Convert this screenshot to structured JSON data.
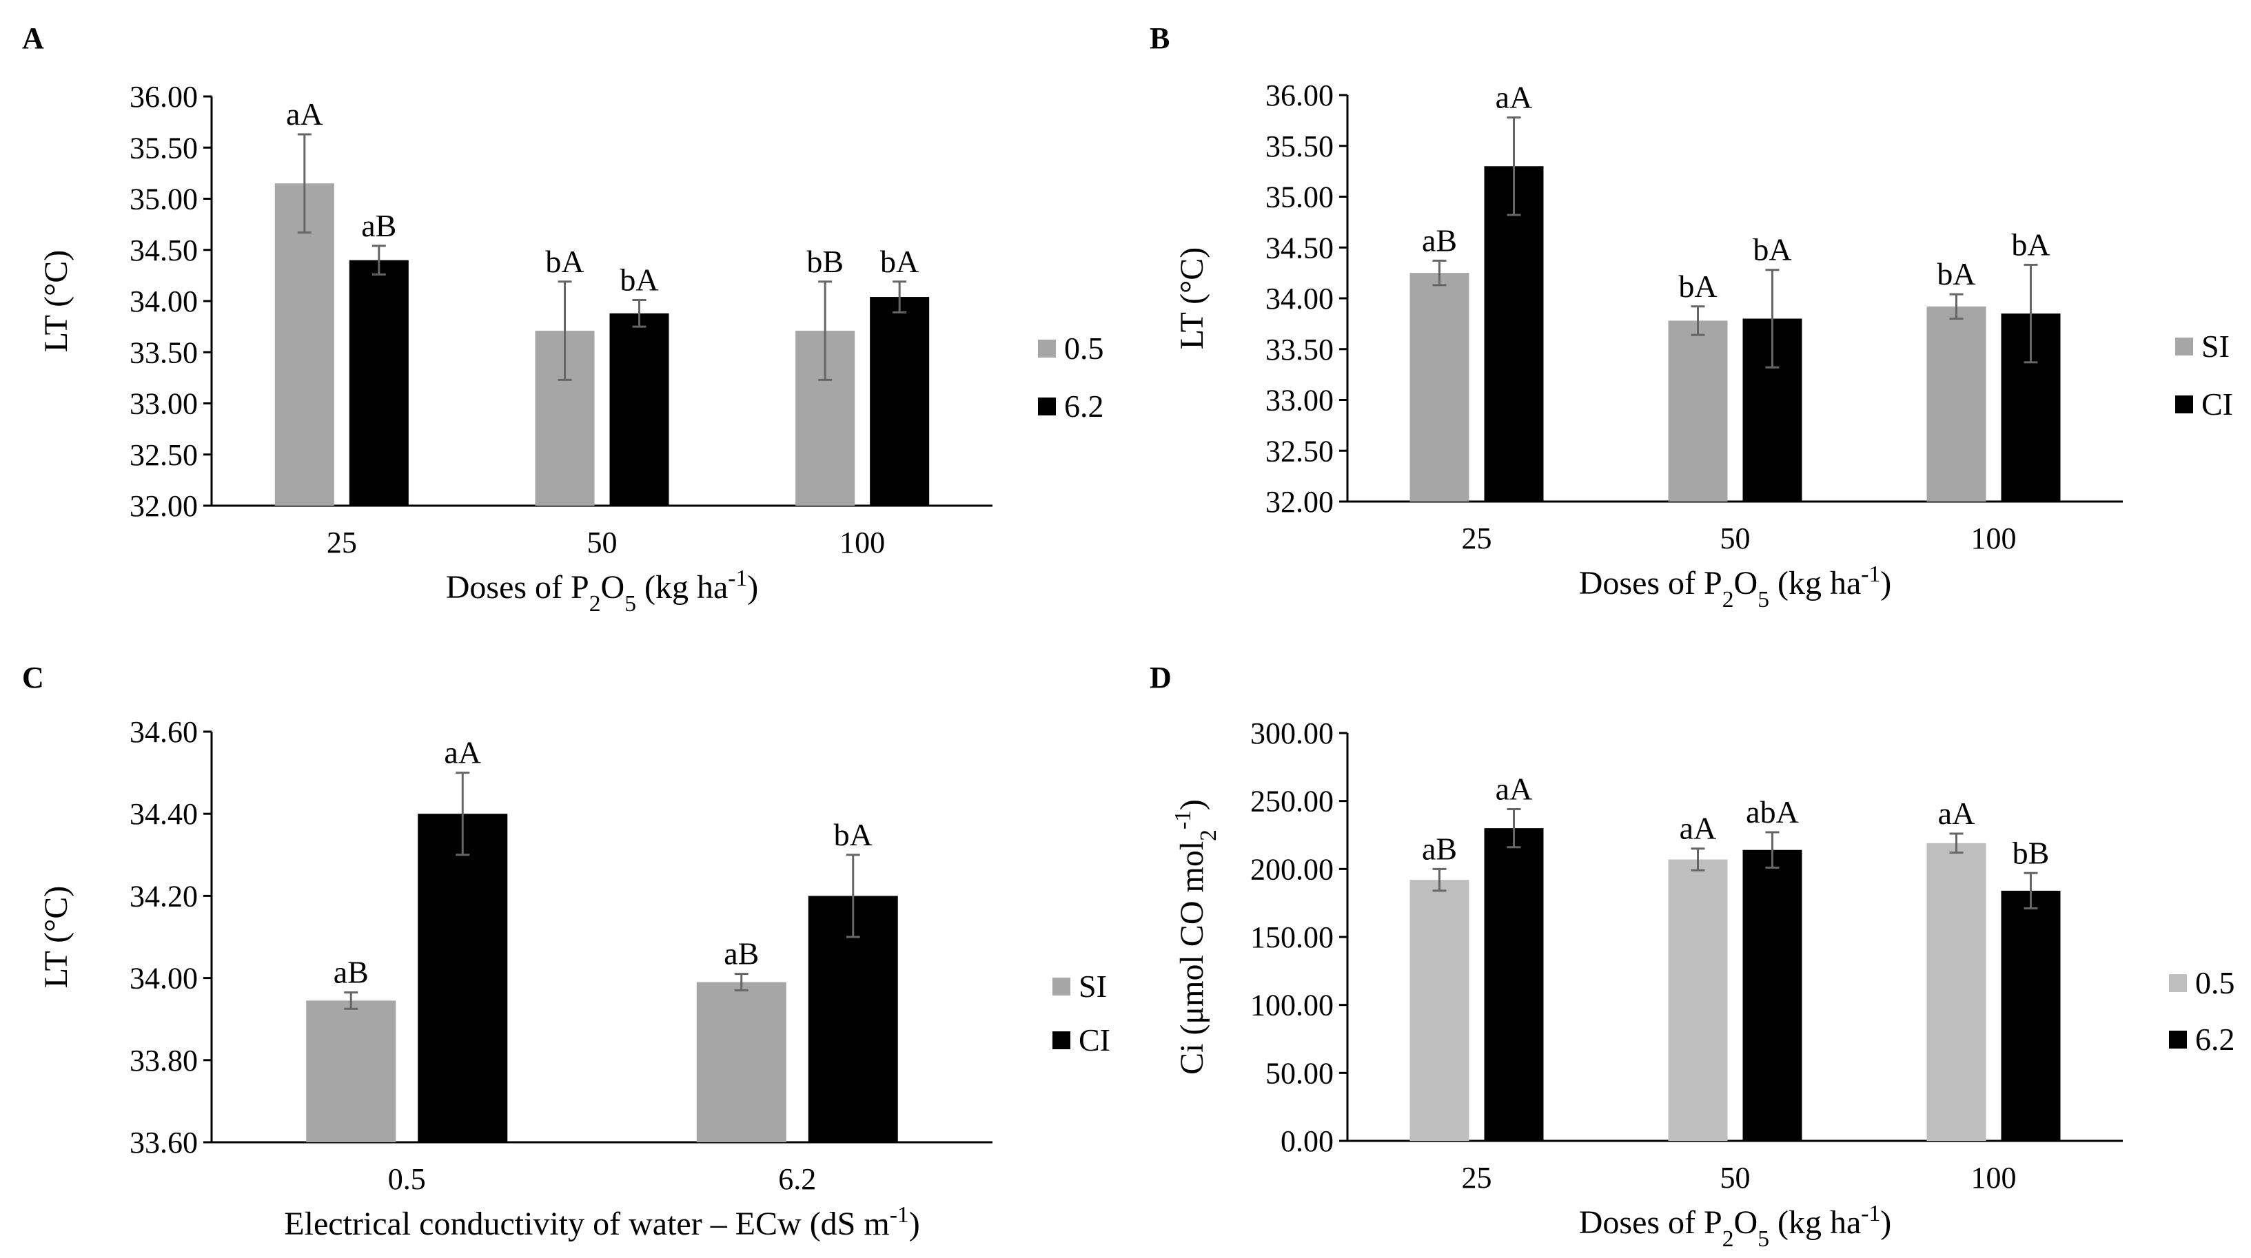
{
  "figure": {
    "description": "Four bar charts (A-D) with error bars and significance letters"
  },
  "chart_data": [
    {
      "panel": "A",
      "type": "bar",
      "categories": [
        "25",
        "50",
        "100"
      ],
      "series": [
        {
          "name": "0.5",
          "color": "#a6a6a6",
          "values": [
            35.15,
            33.71,
            33.71
          ],
          "errors": [
            0.48,
            0.48,
            0.48
          ],
          "labels": [
            "aA",
            "bA",
            "bB"
          ]
        },
        {
          "name": "6.2",
          "color": "#000000",
          "values": [
            34.4,
            33.88,
            34.04
          ],
          "errors": [
            0.14,
            0.13,
            0.15
          ],
          "labels": [
            "aB",
            "bA",
            "bA"
          ]
        }
      ],
      "ylim": [
        32.0,
        36.0
      ],
      "yticks": [
        "32.00",
        "32.50",
        "33.00",
        "33.50",
        "34.00",
        "34.50",
        "35.00",
        "35.50",
        "36.00"
      ],
      "ylabel": "LT (°C)",
      "xlabel": {
        "prefix": "Doses of P",
        "sub1": "2",
        "mid": "O",
        "sub2": "5",
        "suffix": " (kg ha",
        "sup": "-1",
        "end": ")"
      }
    },
    {
      "panel": "B",
      "type": "bar",
      "categories": [
        "25",
        "50",
        "100"
      ],
      "series": [
        {
          "name": "SI",
          "color": "#a6a6a6",
          "values": [
            34.25,
            33.78,
            33.92
          ],
          "errors": [
            0.12,
            0.14,
            0.12
          ],
          "labels": [
            "aB",
            "bA",
            "bA"
          ]
        },
        {
          "name": "CI",
          "color": "#000000",
          "values": [
            35.3,
            33.8,
            33.85
          ],
          "errors": [
            0.48,
            0.48,
            0.48
          ],
          "labels": [
            "aA",
            "bA",
            "bA"
          ]
        }
      ],
      "ylim": [
        32.0,
        36.0
      ],
      "yticks": [
        "32.00",
        "32.50",
        "33.00",
        "33.50",
        "34.00",
        "34.50",
        "35.00",
        "35.50",
        "36.00"
      ],
      "ylabel": "LT (°C)",
      "xlabel": {
        "prefix": "Doses of P",
        "sub1": "2",
        "mid": "O",
        "sub2": "5",
        "suffix": " (kg ha",
        "sup": "-1",
        "end": ")"
      }
    },
    {
      "panel": "C",
      "type": "bar",
      "categories": [
        "0.5",
        "6.2"
      ],
      "series": [
        {
          "name": "SI",
          "color": "#a6a6a6",
          "values": [
            33.945,
            33.99
          ],
          "errors": [
            0.02,
            0.02
          ],
          "labels": [
            "aB",
            "aB"
          ]
        },
        {
          "name": "CI",
          "color": "#000000",
          "values": [
            34.4,
            34.2
          ],
          "errors": [
            0.1,
            0.1
          ],
          "labels": [
            "aA",
            "bA"
          ]
        }
      ],
      "ylim": [
        33.6,
        34.6
      ],
      "yticks": [
        "33.60",
        "33.80",
        "34.00",
        "34.20",
        "34.40",
        "34.60"
      ],
      "ylabel": "LT (°C)",
      "xlabel": {
        "prefix": "Electrical conductivity of water – ECw (dS m",
        "sup": "-1",
        "end": ")"
      }
    },
    {
      "panel": "D",
      "type": "bar",
      "categories": [
        "25",
        "50",
        "100"
      ],
      "series": [
        {
          "name": "0.5",
          "color": "#bfbfbf",
          "values": [
            192,
            207,
            219
          ],
          "errors": [
            8,
            8,
            7
          ],
          "labels": [
            "aB",
            "aA",
            "aA"
          ]
        },
        {
          "name": "6.2",
          "color": "#000000",
          "values": [
            230,
            214,
            184
          ],
          "errors": [
            14,
            13,
            13
          ],
          "labels": [
            "aA",
            "abA",
            "bB"
          ]
        }
      ],
      "ylim": [
        0,
        300
      ],
      "yticks": [
        "0.00",
        "50.00",
        "100.00",
        "150.00",
        "200.00",
        "250.00",
        "300.00"
      ],
      "ylabel": {
        "prefix": "Ci (μmol CO",
        "sub": "2",
        "mid": " mol",
        "sup": "-1",
        "end": ")"
      },
      "xlabel": {
        "prefix": "Doses of P",
        "sub1": "2",
        "mid": "O",
        "sub2": "5",
        "suffix": " (kg ha",
        "sup": "-1",
        "end": ")"
      }
    }
  ]
}
